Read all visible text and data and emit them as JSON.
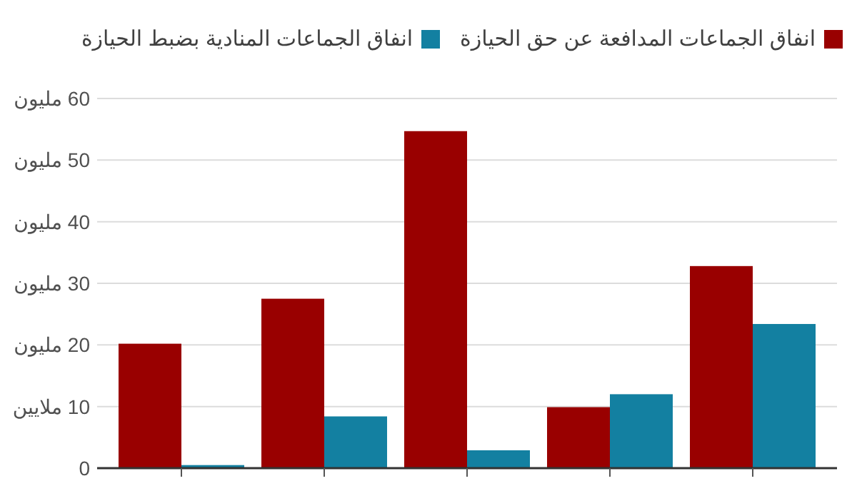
{
  "chart_data": {
    "type": "bar",
    "categories": [
      null,
      null,
      null,
      null,
      null
    ],
    "series": [
      {
        "name": "انفاق الجماعات المدافعة عن حق الحيازة",
        "color": "#990000",
        "values": [
          20.2,
          27.5,
          54.7,
          9.9,
          32.8
        ]
      },
      {
        "name": "انفاق الجماعات المنادية بضبط الحيازة",
        "color": "#1380a1",
        "values": [
          0.5,
          8.4,
          2.9,
          12.0,
          23.4
        ]
      }
    ],
    "ylim": [
      0,
      60
    ],
    "yticks": [
      0,
      {
        "value": 10,
        "label": "10 ملايين"
      },
      {
        "value": 20,
        "label": "20 مليون"
      },
      {
        "value": 30,
        "label": "30 مليون"
      },
      {
        "value": 40,
        "label": "40 مليون"
      },
      {
        "value": 50,
        "label": "50 مليون"
      },
      {
        "value": 60,
        "label": "60 مليون"
      }
    ],
    "grid": "y",
    "legend": "top"
  }
}
